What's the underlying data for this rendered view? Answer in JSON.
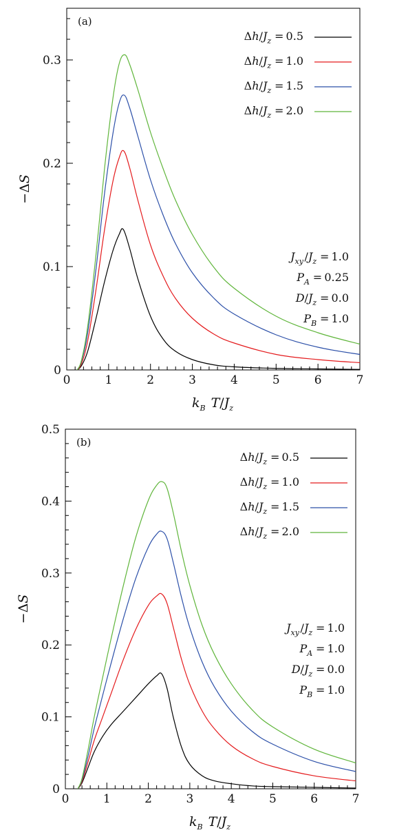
{
  "chart_data": [
    {
      "type": "line",
      "panel_label": "(a)",
      "xlabel": "k_B T/J_z",
      "ylabel": "−ΔS",
      "xlim": [
        0,
        7
      ],
      "ylim": [
        0,
        0.35
      ],
      "xticks": [
        0,
        1,
        2,
        3,
        4,
        5,
        6,
        7
      ],
      "yticks": [
        0,
        0.1,
        0.2,
        0.3
      ],
      "ytick_labels": [
        "0",
        "0.1",
        "0.2",
        "0.3"
      ],
      "legend_position": "top-right",
      "series": [
        {
          "name": "Δh/J_z = 0.5",
          "color": "#000000",
          "peak_x": 1.35,
          "peak_y": 0.136,
          "x": [
            0.25,
            0.35,
            0.5,
            0.7,
            0.9,
            1.1,
            1.25,
            1.35,
            1.5,
            1.7,
            2.0,
            2.3,
            2.6,
            3.0,
            3.5,
            4.0,
            5.0,
            6.0,
            7.0
          ],
          "y": [
            0,
            0.004,
            0.018,
            0.05,
            0.085,
            0.115,
            0.131,
            0.136,
            0.118,
            0.088,
            0.052,
            0.03,
            0.018,
            0.01,
            0.005,
            0.003,
            0.0015,
            0.001,
            0.0005
          ]
        },
        {
          "name": "Δh/J_z = 1.0",
          "color": "#e41a1c",
          "peak_x": 1.36,
          "peak_y": 0.212,
          "x": [
            0.25,
            0.35,
            0.5,
            0.7,
            0.9,
            1.1,
            1.25,
            1.36,
            1.5,
            1.7,
            2.0,
            2.3,
            2.6,
            3.0,
            3.5,
            4.0,
            5.0,
            6.0,
            7.0
          ],
          "y": [
            0,
            0.006,
            0.028,
            0.078,
            0.135,
            0.182,
            0.205,
            0.212,
            0.196,
            0.164,
            0.121,
            0.091,
            0.069,
            0.05,
            0.035,
            0.026,
            0.015,
            0.01,
            0.007
          ]
        },
        {
          "name": "Δh/J_z = 1.5",
          "color": "#2b4fa8",
          "peak_x": 1.37,
          "peak_y": 0.266,
          "x": [
            0.25,
            0.35,
            0.5,
            0.7,
            0.9,
            1.1,
            1.25,
            1.37,
            1.5,
            1.7,
            2.0,
            2.3,
            2.6,
            3.0,
            3.5,
            4.0,
            5.0,
            6.0,
            7.0
          ],
          "y": [
            0,
            0.008,
            0.036,
            0.098,
            0.17,
            0.228,
            0.258,
            0.266,
            0.254,
            0.226,
            0.184,
            0.15,
            0.122,
            0.094,
            0.07,
            0.054,
            0.034,
            0.022,
            0.015
          ]
        },
        {
          "name": "Δh/J_z = 2.0",
          "color": "#5fb53a",
          "peak_x": 1.38,
          "peak_y": 0.305,
          "x": [
            0.25,
            0.35,
            0.5,
            0.7,
            0.9,
            1.1,
            1.25,
            1.38,
            1.5,
            1.7,
            2.0,
            2.3,
            2.6,
            3.0,
            3.5,
            4.0,
            5.0,
            6.0,
            7.0
          ],
          "y": [
            0,
            0.009,
            0.042,
            0.112,
            0.194,
            0.262,
            0.296,
            0.305,
            0.296,
            0.271,
            0.23,
            0.195,
            0.164,
            0.131,
            0.1,
            0.079,
            0.052,
            0.036,
            0.025
          ]
        }
      ],
      "parameters": [
        "J_xy/J_z = 1.0",
        "P_A = 0.25",
        "D/J_z = 0.0",
        "P_B = 1.0"
      ]
    },
    {
      "type": "line",
      "panel_label": "(b)",
      "xlabel": "k_B T/J_z",
      "ylabel": "−ΔS",
      "xlim": [
        0,
        7
      ],
      "ylim": [
        0,
        0.5
      ],
      "xticks": [
        0,
        1,
        2,
        3,
        4,
        5,
        6,
        7
      ],
      "yticks": [
        0,
        0.1,
        0.2,
        0.3,
        0.4,
        0.5
      ],
      "ytick_labels": [
        "0",
        "0.1",
        "0.2",
        "0.3",
        "0.4",
        "0.5"
      ],
      "legend_position": "top-right",
      "series": [
        {
          "name": "Δh/J_z = 0.5",
          "color": "#000000",
          "peak_x": 2.32,
          "peak_y": 0.16,
          "x": [
            0.3,
            0.4,
            0.55,
            0.7,
            0.9,
            1.1,
            1.4,
            1.7,
            2.0,
            2.2,
            2.32,
            2.45,
            2.6,
            2.8,
            3.0,
            3.3,
            3.6,
            4.0,
            4.5,
            5.0,
            6.0,
            7.0
          ],
          "y": [
            0,
            0.008,
            0.03,
            0.052,
            0.073,
            0.089,
            0.108,
            0.127,
            0.146,
            0.157,
            0.16,
            0.14,
            0.1,
            0.058,
            0.034,
            0.018,
            0.011,
            0.007,
            0.004,
            0.003,
            0.002,
            0.001
          ]
        },
        {
          "name": "Δh/J_z = 1.0",
          "color": "#e41a1c",
          "peak_x": 2.32,
          "peak_y": 0.271,
          "x": [
            0.3,
            0.4,
            0.55,
            0.7,
            0.9,
            1.1,
            1.4,
            1.7,
            2.0,
            2.2,
            2.32,
            2.45,
            2.6,
            2.8,
            3.0,
            3.3,
            3.6,
            4.0,
            4.5,
            5.0,
            6.0,
            7.0
          ],
          "y": [
            0,
            0.01,
            0.038,
            0.068,
            0.1,
            0.132,
            0.18,
            0.222,
            0.255,
            0.268,
            0.271,
            0.258,
            0.225,
            0.18,
            0.145,
            0.108,
            0.083,
            0.06,
            0.042,
            0.031,
            0.018,
            0.011
          ]
        },
        {
          "name": "Δh/J_z = 1.5",
          "color": "#2b4fa8",
          "peak_x": 2.32,
          "peak_y": 0.358,
          "x": [
            0.3,
            0.4,
            0.55,
            0.7,
            0.9,
            1.1,
            1.4,
            1.7,
            2.0,
            2.2,
            2.32,
            2.45,
            2.6,
            2.8,
            3.0,
            3.3,
            3.6,
            4.0,
            4.5,
            5.0,
            6.0,
            7.0
          ],
          "y": [
            0,
            0.012,
            0.046,
            0.085,
            0.13,
            0.174,
            0.237,
            0.293,
            0.336,
            0.354,
            0.358,
            0.348,
            0.315,
            0.266,
            0.224,
            0.176,
            0.141,
            0.108,
            0.08,
            0.062,
            0.038,
            0.024
          ]
        },
        {
          "name": "Δh/J_z = 2.0",
          "color": "#5fb53a",
          "peak_x": 2.33,
          "peak_y": 0.427,
          "x": [
            0.3,
            0.4,
            0.55,
            0.7,
            0.9,
            1.1,
            1.4,
            1.7,
            2.0,
            2.2,
            2.33,
            2.45,
            2.6,
            2.8,
            3.0,
            3.3,
            3.6,
            4.0,
            4.5,
            5.0,
            6.0,
            7.0
          ],
          "y": [
            0,
            0.014,
            0.055,
            0.101,
            0.155,
            0.208,
            0.283,
            0.35,
            0.401,
            0.422,
            0.427,
            0.418,
            0.384,
            0.33,
            0.283,
            0.227,
            0.186,
            0.146,
            0.11,
            0.086,
            0.055,
            0.036
          ]
        }
      ],
      "parameters": [
        "J_xy/J_z = 1.0",
        "P_A = 1.0",
        "D/J_z = 0.0",
        "P_B = 1.0"
      ]
    }
  ]
}
